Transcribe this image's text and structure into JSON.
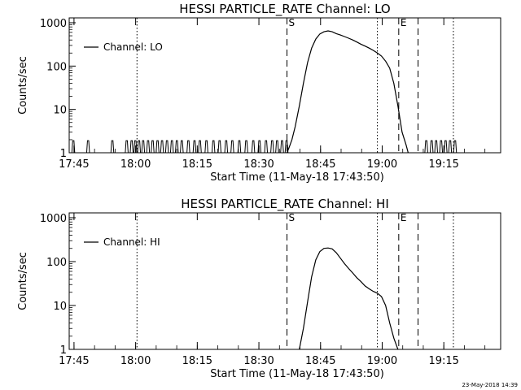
{
  "footer": {
    "timestamp": "23-May-2018 14:39"
  },
  "chart_data": [
    {
      "type": "line",
      "title": "HESSI PARTICLE_RATE Channel: LO",
      "xlabel": "Start Time (11-May-18 17:43:50)",
      "ylabel": "Counts/sec",
      "yscale": "log",
      "ylim": [
        1,
        1000
      ],
      "xlim_minutes_after_start": [
        0,
        105
      ],
      "x_tick_labels": [
        "17:45",
        "18:00",
        "18:15",
        "18:30",
        "18:45",
        "19:00",
        "19:15"
      ],
      "x_tick_minutes": [
        1.17,
        16.17,
        31.17,
        46.17,
        61.17,
        76.17,
        91.17
      ],
      "y_tick_labels": [
        "1",
        "10",
        "100",
        "1000"
      ],
      "y_tick_values": [
        1,
        10,
        100,
        1000
      ],
      "legend": {
        "label": "Channel: LO",
        "position": "top-left"
      },
      "markers": [
        {
          "label": "S",
          "minute": 53.0,
          "style": "dashed"
        },
        {
          "label": "E",
          "minute": 80.2,
          "style": "dashed"
        },
        {
          "label": "",
          "minute": 84.9,
          "style": "dashed"
        },
        {
          "label": "",
          "minute": 16.5,
          "style": "dotted"
        },
        {
          "label": "",
          "minute": 75.0,
          "style": "dotted"
        },
        {
          "label": "",
          "minute": 93.5,
          "style": "dotted"
        }
      ],
      "background_spikes_minutes": [
        1.0,
        4.6,
        10.5,
        14.0,
        15.2,
        16.1,
        17.0,
        18.0,
        19.2,
        20.3,
        21.5,
        22.6,
        23.8,
        25.0,
        26.2,
        27.4,
        29.0,
        30.5,
        31.8,
        33.4,
        35.1,
        36.6,
        38.2,
        39.7,
        41.4,
        43.1,
        44.8,
        46.3,
        47.9,
        49.4,
        50.6,
        51.8,
        52.9,
        86.9,
        88.2,
        89.3,
        90.5,
        91.6,
        92.7,
        93.9
      ],
      "background_spike_level": 1.9,
      "series": [
        {
          "name": "Channel: LO",
          "points": [
            [
              53.0,
              1.0
            ],
            [
              53.5,
              1.3
            ],
            [
              54.2,
              2.0
            ],
            [
              55.0,
              4.0
            ],
            [
              56.0,
              12.0
            ],
            [
              57.0,
              40.0
            ],
            [
              58.0,
              120.0
            ],
            [
              59.0,
              260.0
            ],
            [
              60.0,
              420.0
            ],
            [
              61.0,
              550.0
            ],
            [
              62.0,
              620.0
            ],
            [
              63.0,
              650.0
            ],
            [
              64.0,
              620.0
            ],
            [
              65.0,
              560.0
            ],
            [
              66.0,
              520.0
            ],
            [
              67.0,
              480.0
            ],
            [
              68.0,
              440.0
            ],
            [
              69.0,
              400.0
            ],
            [
              70.0,
              360.0
            ],
            [
              71.0,
              320.0
            ],
            [
              72.0,
              290.0
            ],
            [
              73.0,
              260.0
            ],
            [
              74.0,
              230.0
            ],
            [
              75.0,
              200.0
            ],
            [
              76.0,
              170.0
            ],
            [
              77.0,
              130.0
            ],
            [
              78.0,
              90.0
            ],
            [
              79.0,
              40.0
            ],
            [
              80.0,
              12.0
            ],
            [
              81.0,
              3.0
            ],
            [
              82.0,
              1.5
            ],
            [
              82.5,
              1.0
            ]
          ]
        }
      ]
    },
    {
      "type": "line",
      "title": "HESSI PARTICLE_RATE Channel: HI",
      "xlabel": "Start Time (11-May-18 17:43:50)",
      "ylabel": "Counts/sec",
      "yscale": "log",
      "ylim": [
        1,
        1000
      ],
      "xlim_minutes_after_start": [
        0,
        105
      ],
      "x_tick_labels": [
        "17:45",
        "18:00",
        "18:15",
        "18:30",
        "18:45",
        "19:00",
        "19:15"
      ],
      "x_tick_minutes": [
        1.17,
        16.17,
        31.17,
        46.17,
        61.17,
        76.17,
        91.17
      ],
      "y_tick_labels": [
        "1",
        "10",
        "100",
        "1000"
      ],
      "y_tick_values": [
        1,
        10,
        100,
        1000
      ],
      "legend": {
        "label": "Channel: HI",
        "position": "top-left"
      },
      "markers": [
        {
          "label": "S",
          "minute": 53.0,
          "style": "dashed"
        },
        {
          "label": "E",
          "minute": 80.2,
          "style": "dashed"
        },
        {
          "label": "",
          "minute": 84.9,
          "style": "dashed"
        },
        {
          "label": "",
          "minute": 16.5,
          "style": "dotted"
        },
        {
          "label": "",
          "minute": 75.0,
          "style": "dotted"
        },
        {
          "label": "",
          "minute": 93.5,
          "style": "dotted"
        }
      ],
      "series": [
        {
          "name": "Channel: HI",
          "points": [
            [
              56.0,
              1.0
            ],
            [
              57.0,
              3.0
            ],
            [
              58.0,
              12.0
            ],
            [
              59.0,
              45.0
            ],
            [
              60.0,
              110.0
            ],
            [
              61.0,
              170.0
            ],
            [
              62.0,
              200.0
            ],
            [
              63.0,
              205.0
            ],
            [
              64.0,
              195.0
            ],
            [
              65.0,
              160.0
            ],
            [
              66.0,
              120.0
            ],
            [
              67.0,
              90.0
            ],
            [
              68.0,
              70.0
            ],
            [
              69.0,
              55.0
            ],
            [
              70.0,
              43.0
            ],
            [
              71.0,
              35.0
            ],
            [
              72.0,
              28.0
            ],
            [
              73.0,
              24.0
            ],
            [
              74.0,
              21.0
            ],
            [
              75.0,
              19.0
            ],
            [
              76.0,
              16.0
            ],
            [
              77.0,
              10.0
            ],
            [
              78.0,
              4.0
            ],
            [
              79.0,
              1.8
            ],
            [
              80.0,
              1.0
            ]
          ]
        }
      ]
    }
  ]
}
